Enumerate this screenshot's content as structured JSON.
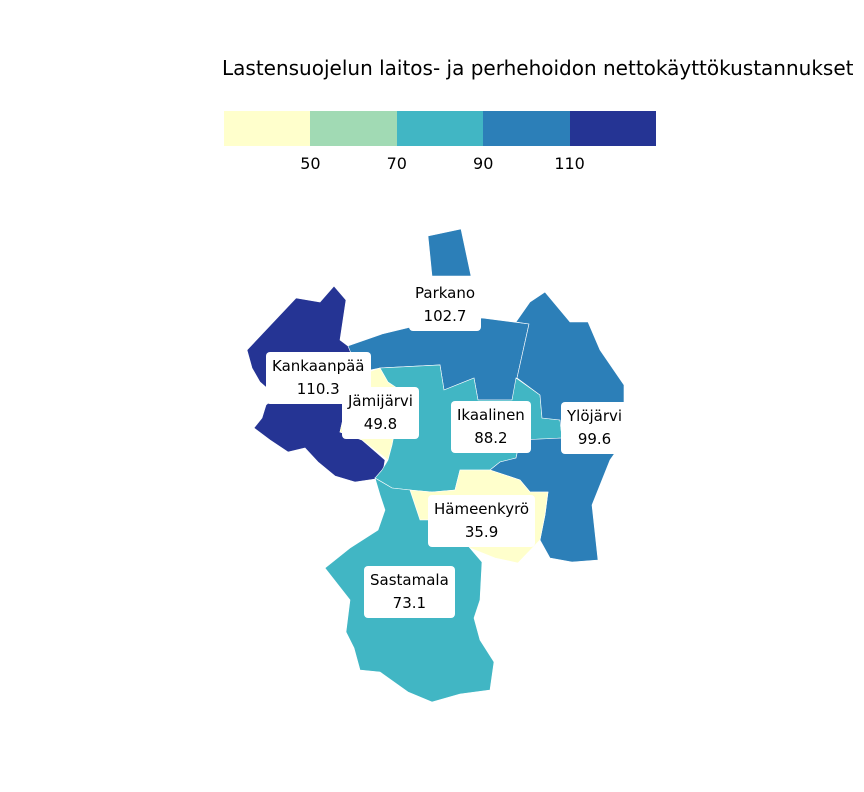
{
  "title": "Lastensuojelun laitos- ja perhehoidon nettokäyttökustannukset",
  "legend": {
    "colors": [
      "#ffffcc",
      "#a1dab4",
      "#41b6c4",
      "#2c7fb8",
      "#253494"
    ],
    "ticks": [
      "50",
      "70",
      "90",
      "110"
    ],
    "breaks": [
      50,
      70,
      90,
      110
    ]
  },
  "regions": [
    {
      "name": "Parkano",
      "value": "102.7",
      "color": "#2c7fb8"
    },
    {
      "name": "Kankaanpää",
      "value": "110.3",
      "color": "#253494"
    },
    {
      "name": "Jämijärvi",
      "value": "49.8",
      "color": "#ffffcc"
    },
    {
      "name": "Ikaalinen",
      "value": "88.2",
      "color": "#41b6c4"
    },
    {
      "name": "Ylöjärvi",
      "value": "99.6",
      "color": "#2c7fb8"
    },
    {
      "name": "Hämeenkyrö",
      "value": "35.9",
      "color": "#ffffcc"
    },
    {
      "name": "Sastamala",
      "value": "73.1",
      "color": "#41b6c4"
    }
  ]
}
